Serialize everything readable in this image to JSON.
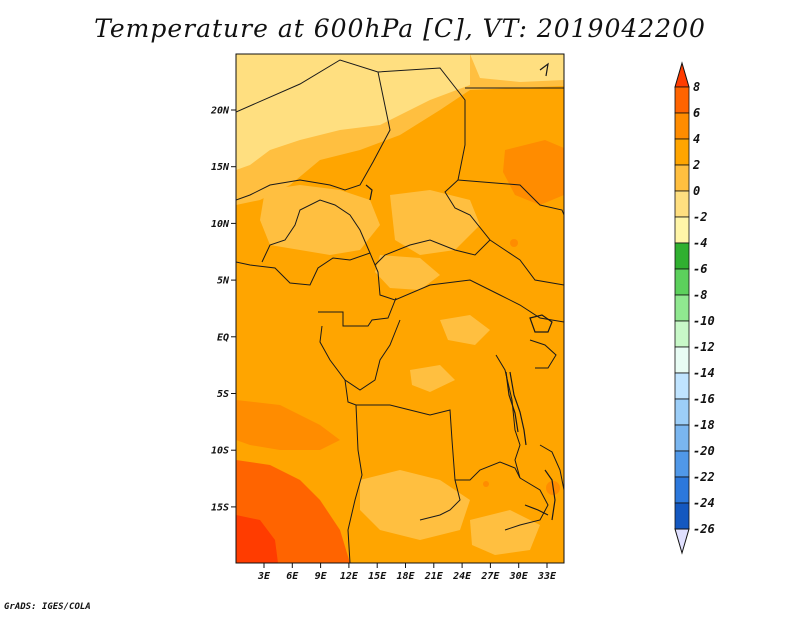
{
  "title": "Temperature at 600hPa [C], VT: 2019042200",
  "credit": "GrADS: IGES/COLA",
  "map": {
    "lat_ticks": [
      "20N",
      "15N",
      "10N",
      "5N",
      "EQ",
      "5S",
      "10S",
      "15S"
    ],
    "lon_ticks": [
      "3E",
      "6E",
      "9E",
      "12E",
      "15E",
      "18E",
      "21E",
      "24E",
      "27E",
      "30E",
      "33E"
    ]
  },
  "colorbar": {
    "labels": [
      "8",
      "6",
      "4",
      "2",
      "0",
      "-2",
      "-4",
      "-6",
      "-8",
      "-10",
      "-12",
      "-14",
      "-16",
      "-18",
      "-20",
      "-22",
      "-24",
      "-26"
    ],
    "colors": [
      "#ff3c00",
      "#ff6400",
      "#ff8c00",
      "#ffa500",
      "#ffbf40",
      "#ffdf80",
      "#fff5a8",
      "#30b030",
      "#5cd05c",
      "#90e890",
      "#c8f8c8",
      "#e8fcf4",
      "#c0e4ff",
      "#9ccef8",
      "#7ab6f0",
      "#5098e8",
      "#2c78dc",
      "#1458c0",
      "#0a32a0",
      "#0a1470",
      "#e0e0ff"
    ]
  },
  "colors": {
    "base": "#ffa500",
    "warm": "#ff8c00",
    "hot": "#ff6400",
    "hottest": "#ff3c00",
    "cool": "#ffbf40",
    "cooler": "#ffdf80"
  }
}
